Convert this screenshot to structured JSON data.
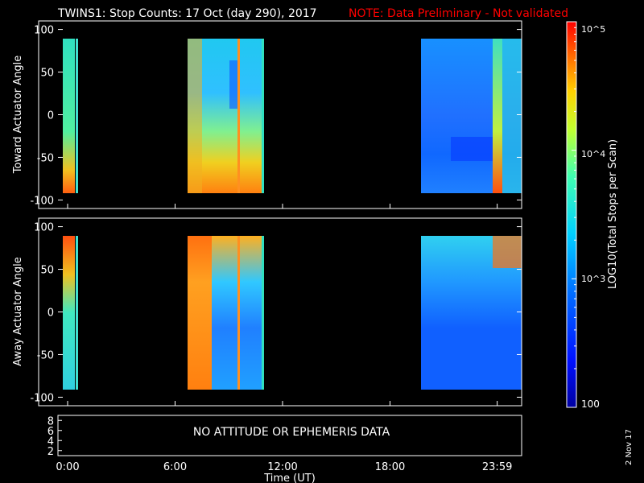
{
  "header": {
    "title": "TWINS1: Stop Counts: 17 Oct (day 290), 2017",
    "note": "NOTE: Data Preliminary - Not validated"
  },
  "colors": {
    "background": "#000000",
    "axes": "#ffffff",
    "note": "#ff0000"
  },
  "chart_data": [
    {
      "type": "heatmap",
      "panel": "top",
      "ylabel": "Toward Actuator Angle",
      "ylim": [
        -110,
        110
      ],
      "y_ticks": [
        "100",
        "50",
        "0",
        "-50",
        "-100"
      ],
      "x_range_hours": [
        0,
        24
      ],
      "colorscale": "log10",
      "segments": [
        {
          "start_h": 0.05,
          "end_h": 0.35,
          "angle_range": [
            -90,
            90
          ],
          "level": "green-cyan, orange near -80"
        },
        {
          "start_h": 6.7,
          "end_h": 10.7,
          "angle_range": [
            -90,
            90
          ],
          "level": "cyan at positive angles, yellow-orange toward -90"
        },
        {
          "start_h": 18.9,
          "end_h": 24.0,
          "angle_range": [
            -90,
            90
          ],
          "level": "blue, orange near end"
        }
      ]
    },
    {
      "type": "heatmap",
      "panel": "middle",
      "ylabel": "Away Actuator Angle",
      "ylim": [
        -110,
        110
      ],
      "y_ticks": [
        "100",
        "50",
        "0",
        "-50",
        "-100"
      ],
      "x_range_hours": [
        0,
        24
      ],
      "colorscale": "log10",
      "segments": [
        {
          "start_h": 0.05,
          "end_h": 0.35,
          "angle_range": [
            -90,
            90
          ],
          "level": "orange at top, cyan below"
        },
        {
          "start_h": 6.7,
          "end_h": 10.7,
          "angle_range": [
            -90,
            90
          ],
          "level": "orange left, cyan-blue right"
        },
        {
          "start_h": 18.9,
          "end_h": 24.0,
          "angle_range": [
            -90,
            90
          ],
          "level": "cyan at top, blue below"
        }
      ]
    },
    {
      "type": "line",
      "panel": "bottom",
      "y_ticks": [
        "8",
        "6",
        "4",
        "2"
      ],
      "message": "NO ATTITUDE OR EPHEMERIS DATA",
      "x_ticks": [
        "0:00",
        "6:00",
        "12:00",
        "18:00",
        "23:59"
      ],
      "xlabel": "Time (UT)"
    }
  ],
  "colorbar": {
    "label": "LOG10(Total Stops per Scan)",
    "tick_labels": {
      "top": "10^5",
      "upper": "10^4",
      "lower": "10^3",
      "bottom": "100"
    },
    "range": [
      100,
      100000
    ],
    "scale": "log"
  },
  "footer": {
    "date": "2 Nov 17"
  }
}
